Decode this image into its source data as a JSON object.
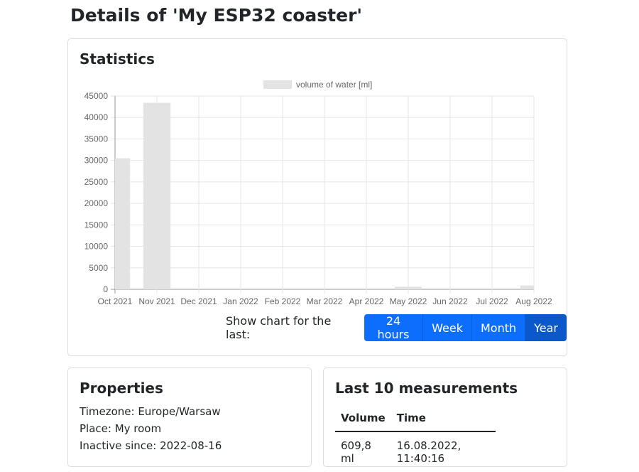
{
  "page": {
    "title": "Details of 'My ESP32 coaster'"
  },
  "statistics": {
    "title": "Statistics",
    "controls_label": "Show chart for the last:",
    "buttons": [
      {
        "label": "24 hours",
        "active": false
      },
      {
        "label": "Week",
        "active": false
      },
      {
        "label": "Month",
        "active": false
      },
      {
        "label": "Year",
        "active": true
      }
    ]
  },
  "chart_data": {
    "type": "bar",
    "categories": [
      "Oct 2021",
      "Nov 2021",
      "Dec 2021",
      "Jan 2022",
      "Feb 2022",
      "Mar 2022",
      "Apr 2022",
      "May 2022",
      "Jun 2022",
      "Jul 2022",
      "Aug 2022"
    ],
    "series": [
      {
        "name": "volume of water [ml]",
        "values": [
          30500,
          43400,
          0,
          0,
          0,
          0,
          0,
          600,
          0,
          0,
          900
        ]
      }
    ],
    "yticks": [
      0,
      5000,
      10000,
      15000,
      20000,
      25000,
      30000,
      35000,
      40000,
      45000
    ],
    "ylim": [
      0,
      45000
    ],
    "grid": true,
    "legend": "top",
    "bar_color": "#e3e3e3"
  },
  "properties": {
    "title": "Properties",
    "timezone": "Timezone: Europe/Warsaw",
    "place": "Place: My room",
    "inactive": "Inactive since: 2022-08-16"
  },
  "measurements": {
    "title": "Last 10 measurements",
    "headers": [
      "Volume",
      "Time"
    ],
    "rows": [
      [
        "609,8 ml",
        "16.08.2022, 11:40:16"
      ]
    ]
  }
}
